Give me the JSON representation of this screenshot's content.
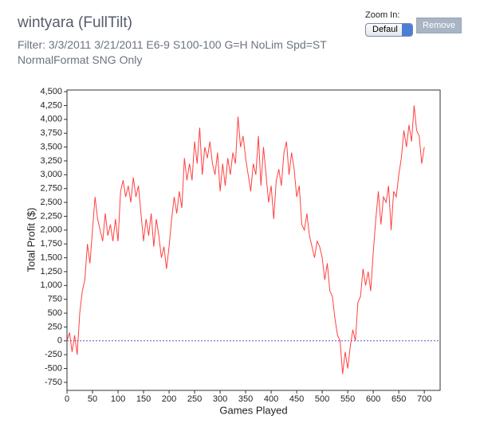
{
  "header": {
    "title": "wintyara (FullTilt)",
    "filter_lines": [
      "Filter: 3/3/2011 3/21/2011 E6-9 S100-100 G=H NoLim Spd=ST",
      "NormalFormat SNG Only"
    ]
  },
  "controls": {
    "zoom_label": "Zoom In:",
    "zoom_value": "Defaul",
    "remove_button": "Remove"
  },
  "chart_data": {
    "type": "line",
    "x_label": "Games Played",
    "y_label": "Total Profit ($)",
    "color": "#ff4040",
    "x": [
      0,
      5,
      10,
      15,
      20,
      25,
      30,
      35,
      40,
      45,
      50,
      55,
      60,
      65,
      70,
      75,
      80,
      85,
      90,
      95,
      100,
      105,
      110,
      115,
      120,
      125,
      130,
      135,
      140,
      145,
      150,
      155,
      160,
      165,
      170,
      175,
      180,
      185,
      190,
      195,
      200,
      205,
      210,
      215,
      220,
      225,
      230,
      235,
      240,
      245,
      250,
      255,
      260,
      265,
      270,
      275,
      280,
      285,
      290,
      295,
      300,
      305,
      310,
      315,
      320,
      325,
      330,
      335,
      340,
      345,
      350,
      355,
      360,
      365,
      370,
      375,
      380,
      385,
      390,
      395,
      400,
      405,
      410,
      415,
      420,
      425,
      430,
      435,
      440,
      445,
      450,
      455,
      460,
      465,
      470,
      475,
      480,
      485,
      490,
      495,
      500,
      505,
      510,
      515,
      520,
      525,
      530,
      535,
      540,
      545,
      550,
      555,
      560,
      565,
      570,
      575,
      580,
      585,
      590,
      595,
      600,
      605,
      610,
      615,
      620,
      625,
      630,
      635,
      640,
      645,
      650,
      655,
      660,
      665,
      670,
      675,
      680,
      685,
      690,
      695,
      700
    ],
    "values": [
      0,
      150,
      -200,
      100,
      -250,
      500,
      900,
      1100,
      1750,
      1400,
      2000,
      2600,
      2200,
      2000,
      1800,
      2300,
      1900,
      2100,
      1800,
      2200,
      1800,
      2700,
      2900,
      2600,
      2800,
      2500,
      2950,
      2600,
      2800,
      2300,
      1800,
      2200,
      1900,
      2300,
      1700,
      2200,
      1900,
      1500,
      1700,
      1300,
      1700,
      2200,
      2600,
      2300,
      2700,
      2400,
      3300,
      2900,
      3200,
      2900,
      3600,
      3200,
      3850,
      3000,
      3500,
      3300,
      3600,
      3200,
      3000,
      3400,
      2700,
      3200,
      2800,
      3300,
      3000,
      3400,
      3200,
      4050,
      3500,
      3700,
      3300,
      3000,
      2700,
      3200,
      3000,
      3700,
      2800,
      3500,
      3000,
      2500,
      2800,
      2200,
      2900,
      3100,
      2800,
      3400,
      3600,
      3000,
      3400,
      3100,
      2600,
      2800,
      2100,
      2000,
      2300,
      1900,
      1700,
      1500,
      1800,
      1700,
      1500,
      1100,
      1400,
      900,
      800,
      400,
      100,
      0,
      -600,
      -200,
      -500,
      -100,
      200,
      0,
      700,
      800,
      1300,
      1000,
      1250,
      900,
      1600,
      2200,
      2700,
      2100,
      2600,
      2500,
      2800,
      2000,
      2700,
      2600,
      3000,
      3300,
      3800,
      3500,
      3900,
      3600,
      4250,
      3800,
      3700,
      3200,
      3500
    ],
    "baseline": 0,
    "baseline_color": "#5555cc",
    "xlim": [
      0,
      731
    ],
    "ylim": [
      -895,
      4530
    ],
    "xticks": [
      0,
      50,
      100,
      150,
      200,
      250,
      300,
      350,
      400,
      450,
      500,
      550,
      600,
      650,
      700
    ],
    "yticks": [
      {
        "value": -750,
        "label": "-750"
      },
      {
        "value": -500,
        "label": "-500"
      },
      {
        "value": -250,
        "label": "-250"
      },
      0,
      250,
      500,
      750,
      {
        "value": 1000,
        "label": "1,000"
      },
      {
        "value": 1250,
        "label": "1,250"
      },
      {
        "value": 1500,
        "label": "1,500"
      },
      {
        "value": 1750,
        "label": "1,750"
      },
      {
        "value": 2000,
        "label": "2,000"
      },
      {
        "value": 2250,
        "label": "2,250"
      },
      {
        "value": 2500,
        "label": "2,500"
      },
      {
        "value": 2750,
        "label": "2,750"
      },
      {
        "value": 3000,
        "label": "3,000"
      },
      {
        "value": 3250,
        "label": "3,250"
      },
      {
        "value": 3500,
        "label": "3,500"
      },
      {
        "value": 3750,
        "label": "3,750"
      },
      {
        "value": 4000,
        "label": "4,000"
      },
      {
        "value": 4250,
        "label": "4,250"
      },
      {
        "value": 4500,
        "label": "4,500"
      }
    ],
    "grid": false
  }
}
